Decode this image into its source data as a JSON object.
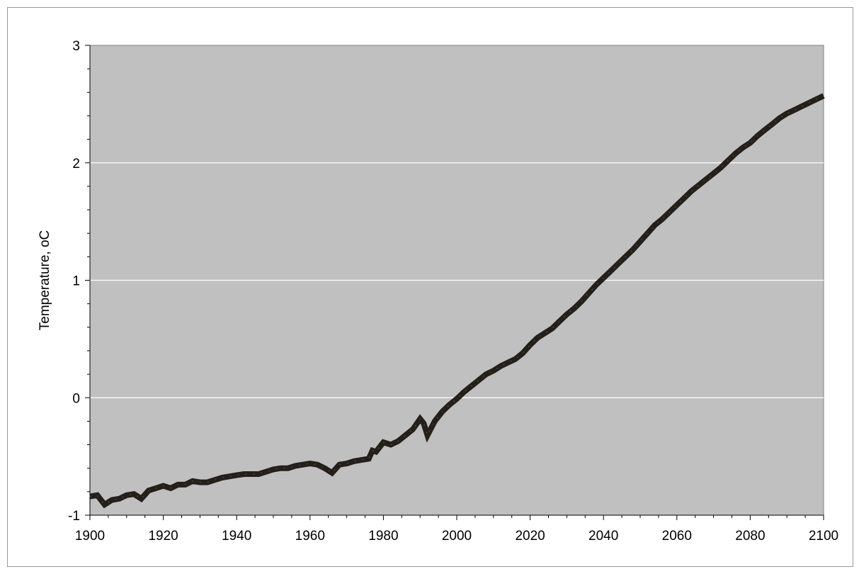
{
  "chart_data": {
    "type": "line",
    "title": "",
    "xlabel": "",
    "ylabel": "Temperature, oC",
    "xlim": [
      1900,
      2100
    ],
    "ylim": [
      -1,
      3
    ],
    "grid": {
      "horizontal_major": true,
      "vertical": false
    },
    "legend": "none",
    "colors": {
      "plot_background": "#c0c0c0",
      "gridline": "#ffffff",
      "line": "#231f1b",
      "axis": "#000000"
    },
    "x_ticks": [
      {
        "value": 1900,
        "label": "1900"
      },
      {
        "value": 1920,
        "label": "1920"
      },
      {
        "value": 1940,
        "label": "1940"
      },
      {
        "value": 1960,
        "label": "1960"
      },
      {
        "value": 1980,
        "label": "1980"
      },
      {
        "value": 2000,
        "label": "2000"
      },
      {
        "value": 2020,
        "label": "2020"
      },
      {
        "value": 2040,
        "label": "2040"
      },
      {
        "value": 2060,
        "label": "2060"
      },
      {
        "value": 2080,
        "label": "2080"
      },
      {
        "value": 2100,
        "label": "2100"
      }
    ],
    "y_ticks": [
      {
        "value": -1,
        "label": "-1"
      },
      {
        "value": 0,
        "label": "0"
      },
      {
        "value": 1,
        "label": "1"
      },
      {
        "value": 2,
        "label": "2"
      },
      {
        "value": 3,
        "label": "3"
      }
    ],
    "y_minor_step": 0.2,
    "x_minor_step": 5,
    "series": [
      {
        "x": [
          1900,
          1902,
          1904,
          1906,
          1908,
          1910,
          1912,
          1914,
          1916,
          1918,
          1920,
          1922,
          1924,
          1926,
          1928,
          1930,
          1932,
          1934,
          1936,
          1938,
          1940,
          1942,
          1944,
          1946,
          1948,
          1950,
          1952,
          1954,
          1956,
          1958,
          1960,
          1962,
          1964,
          1966,
          1968,
          1970,
          1972,
          1974,
          1976,
          1977,
          1978,
          1980,
          1982,
          1984,
          1986,
          1988,
          1990,
          1991,
          1992,
          1994,
          1996,
          1998,
          2000,
          2002,
          2004,
          2006,
          2008,
          2010,
          2012,
          2014,
          2016,
          2018,
          2020,
          2022,
          2024,
          2026,
          2028,
          2030,
          2032,
          2034,
          2036,
          2038,
          2040,
          2042,
          2044,
          2046,
          2048,
          2050,
          2052,
          2054,
          2056,
          2058,
          2060,
          2062,
          2064,
          2066,
          2068,
          2070,
          2072,
          2074,
          2076,
          2078,
          2080,
          2082,
          2084,
          2086,
          2088,
          2090,
          2092,
          2094,
          2096,
          2098,
          2100
        ],
        "values": [
          -0.84,
          -0.83,
          -0.91,
          -0.87,
          -0.86,
          -0.83,
          -0.82,
          -0.86,
          -0.79,
          -0.77,
          -0.75,
          -0.77,
          -0.74,
          -0.74,
          -0.71,
          -0.72,
          -0.72,
          -0.7,
          -0.68,
          -0.67,
          -0.66,
          -0.65,
          -0.65,
          -0.65,
          -0.63,
          -0.61,
          -0.6,
          -0.6,
          -0.58,
          -0.57,
          -0.56,
          -0.57,
          -0.6,
          -0.64,
          -0.57,
          -0.56,
          -0.54,
          -0.53,
          -0.52,
          -0.45,
          -0.46,
          -0.38,
          -0.4,
          -0.37,
          -0.32,
          -0.27,
          -0.18,
          -0.22,
          -0.32,
          -0.2,
          -0.12,
          -0.06,
          -0.01,
          0.05,
          0.1,
          0.15,
          0.2,
          0.23,
          0.27,
          0.3,
          0.33,
          0.38,
          0.45,
          0.51,
          0.55,
          0.59,
          0.65,
          0.71,
          0.76,
          0.82,
          0.89,
          0.96,
          1.02,
          1.08,
          1.14,
          1.2,
          1.26,
          1.33,
          1.4,
          1.47,
          1.52,
          1.58,
          1.64,
          1.7,
          1.76,
          1.81,
          1.86,
          1.91,
          1.96,
          2.02,
          2.08,
          2.13,
          2.17,
          2.23,
          2.28,
          2.33,
          2.38,
          2.42,
          2.45,
          2.48,
          2.51,
          2.54,
          2.57
        ]
      }
    ]
  }
}
